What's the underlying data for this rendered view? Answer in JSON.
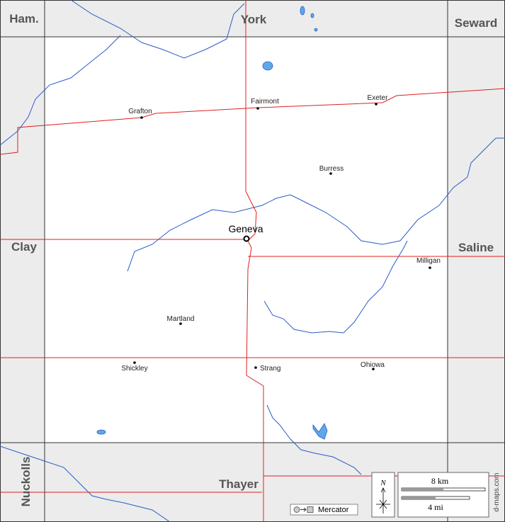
{
  "counties": {
    "northwest": "Ham.",
    "north": "York",
    "northeast": "Seward",
    "west": "Clay",
    "east": "Saline",
    "southwest": "Nuckolls",
    "south": "Thayer"
  },
  "towns": {
    "seat": "Geneva",
    "others": [
      "Grafton",
      "Fairmont",
      "Exeter",
      "Burress",
      "Milligan",
      "Martland",
      "Shickley",
      "Strang",
      "Ohiowa"
    ]
  },
  "legend": {
    "north": "N",
    "scale_km": "8 km",
    "scale_mi": "4 mi",
    "projection": "Mercator",
    "credit": "d-maps.com"
  }
}
